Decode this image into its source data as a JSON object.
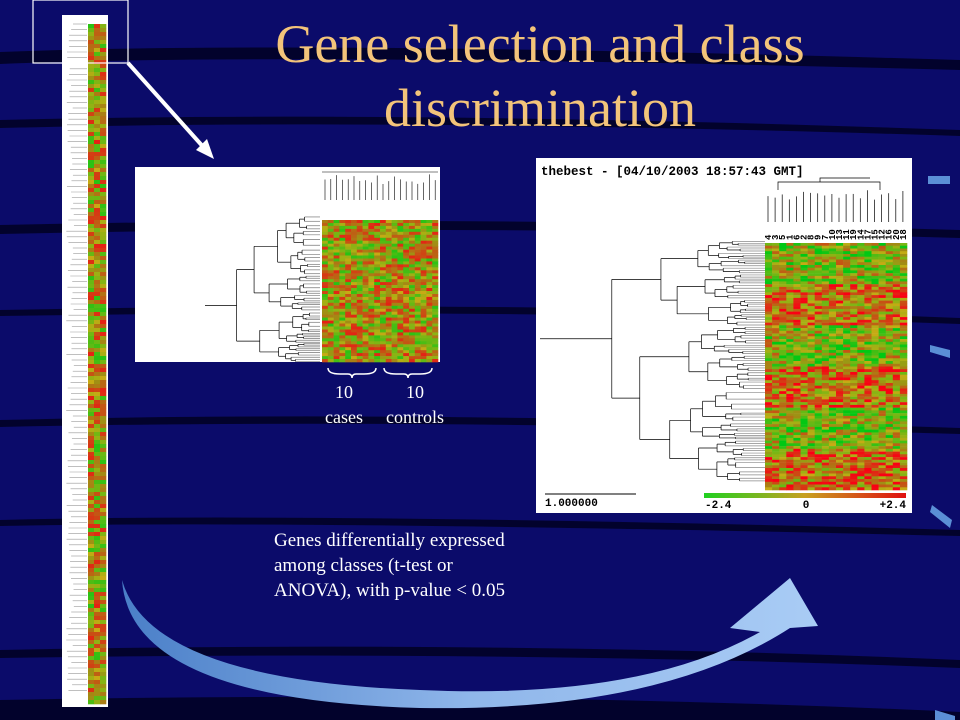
{
  "title": "Gene selection and class discrimination",
  "middle_panel": {
    "groups": [
      {
        "count": 10,
        "label": "cases"
      },
      {
        "count": 10,
        "label": "controls"
      }
    ]
  },
  "right_panel": {
    "header": "thebest - [04/10/2003 18:57:43 GMT]",
    "column_labels": [
      "4",
      "3",
      "5",
      "1",
      "6",
      "2",
      "8",
      "9",
      "7",
      "10",
      "13",
      "11",
      "19",
      "14",
      "17",
      "15",
      "12",
      "16",
      "20",
      "18"
    ],
    "scale_label": "1.000000",
    "color_scale": [
      "-2.4",
      "0",
      "+2.4"
    ]
  },
  "caption": [
    "Genes differentially expressed",
    "among classes (t-test or",
    "ANOVA),  with p-value < 0.05"
  ]
}
